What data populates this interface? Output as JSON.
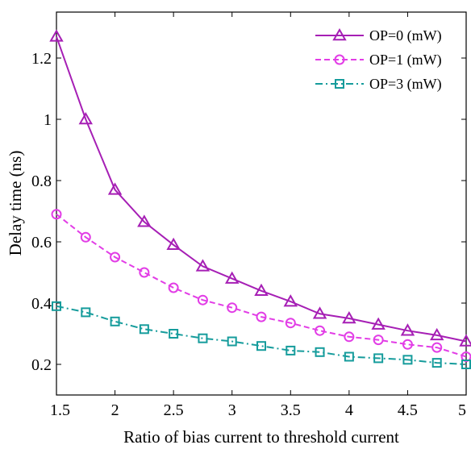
{
  "chart_data": {
    "type": "line",
    "xlabel": "Ratio of bias current to threshold current",
    "ylabel": "Delay time (ns)",
    "xlim": [
      1.5,
      5
    ],
    "ylim": [
      0.1,
      1.35
    ],
    "xticks": [
      "1.5",
      "2",
      "2.5",
      "3",
      "3.5",
      "4",
      "4.5",
      "5"
    ],
    "yticks": [
      "0.2",
      "0.4",
      "0.6",
      "0.8",
      "1",
      "1.2"
    ],
    "x": [
      1.5,
      1.75,
      2.0,
      2.25,
      2.5,
      2.75,
      3.0,
      3.25,
      3.5,
      3.75,
      4.0,
      4.25,
      4.5,
      4.75,
      5.0
    ],
    "legend_position": "top-right",
    "series": [
      {
        "name": "OP=0 (mW)",
        "color": "#a61fb5",
        "line_style": "solid",
        "marker": "triangle",
        "values": [
          1.27,
          1.0,
          0.77,
          0.665,
          0.59,
          0.52,
          0.48,
          0.44,
          0.405,
          0.365,
          0.35,
          0.33,
          0.31,
          0.295,
          0.275
        ]
      },
      {
        "name": "OP=1 (mW)",
        "color": "#e23de6",
        "line_style": "dashed",
        "marker": "circle",
        "values": [
          0.69,
          0.615,
          0.55,
          0.5,
          0.45,
          0.41,
          0.385,
          0.355,
          0.335,
          0.31,
          0.29,
          0.28,
          0.265,
          0.255,
          0.225
        ]
      },
      {
        "name": "OP=3 (mW)",
        "color": "#169c9c",
        "line_style": "dashdot",
        "marker": "square",
        "values": [
          0.39,
          0.37,
          0.34,
          0.315,
          0.3,
          0.285,
          0.275,
          0.26,
          0.245,
          0.24,
          0.225,
          0.22,
          0.215,
          0.205,
          0.2
        ]
      }
    ]
  }
}
